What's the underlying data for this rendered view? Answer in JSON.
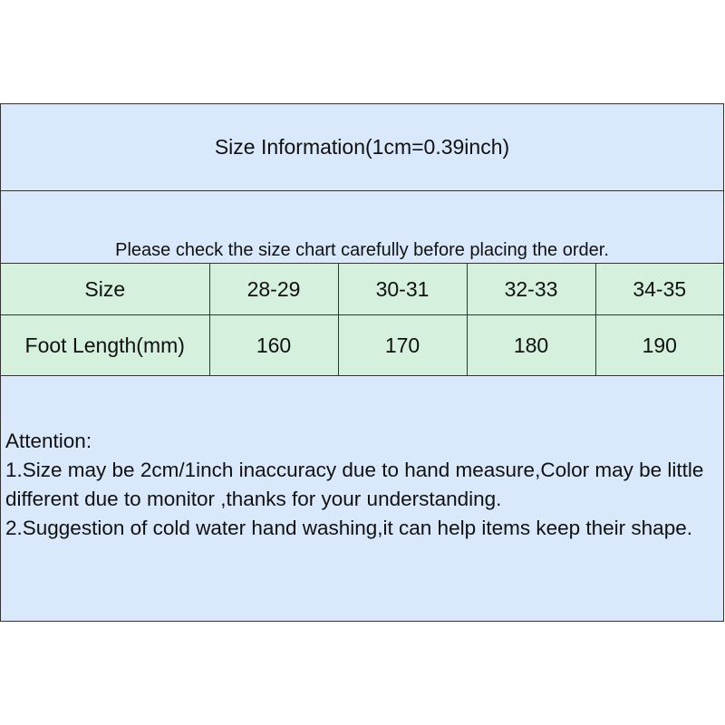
{
  "title": "Size Information(1cm=0.39inch)",
  "notice": "Please check the size chart carefully before placing the order.",
  "table": {
    "rows": [
      [
        "Size",
        "28-29",
        "30-31",
        "32-33",
        "34-35"
      ],
      [
        "Foot Length(mm)",
        "160",
        "170",
        "180",
        "190"
      ]
    ]
  },
  "attention": {
    "heading": "Attention:",
    "items": [
      "1.Size may be 2cm/1inch inaccuracy due to hand measure,Color may be little different due to monitor ,thanks for your understanding.",
      "2.Suggestion of cold water hand washing,it can help items keep their shape."
    ]
  },
  "colors": {
    "header_bg": "#dae8fc",
    "table_bg": "#d5f0dc",
    "border": "#333333"
  }
}
